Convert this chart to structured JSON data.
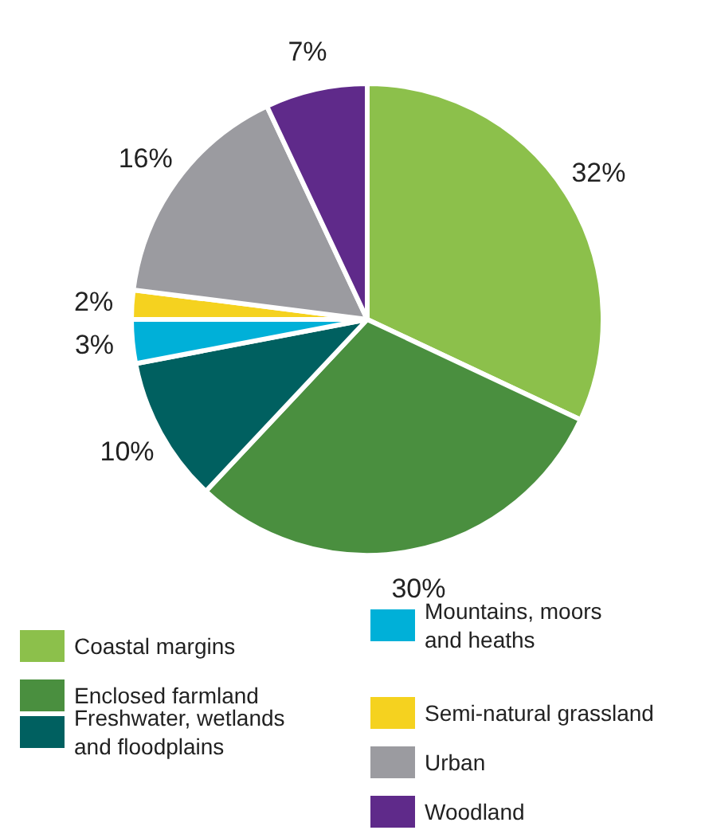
{
  "chart_data": {
    "type": "pie",
    "categories": [
      "Coastal margins",
      "Enclosed farmland",
      "Freshwater, wetlands\nand floodplains",
      "Mountains, moors\nand heaths",
      "Semi-natural grassland",
      "Urban",
      "Woodland"
    ],
    "values": [
      32,
      30,
      10,
      3,
      2,
      16,
      7
    ],
    "colors": [
      "#8cc04b",
      "#4a8f3f",
      "#006060",
      "#00b0d8",
      "#f5d21f",
      "#9b9ba0",
      "#5f2a8a"
    ],
    "value_labels": [
      "32%",
      "30%",
      "10%",
      "3%",
      "2%",
      "16%",
      "7%"
    ],
    "legend": "bottom"
  }
}
